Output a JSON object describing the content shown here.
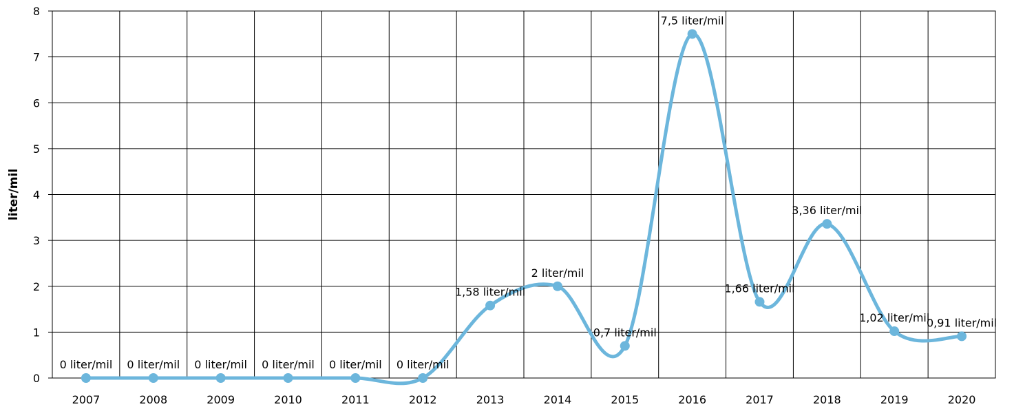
{
  "chart_data": {
    "type": "line",
    "title": "",
    "xlabel": "",
    "ylabel": "liter/mil",
    "categories": [
      "2007",
      "2008",
      "2009",
      "2010",
      "2011",
      "2012",
      "2013",
      "2014",
      "2015",
      "2016",
      "2017",
      "2018",
      "2019",
      "2020"
    ],
    "series": [
      {
        "values": [
          0,
          0,
          0,
          0,
          0,
          0,
          1.58,
          2,
          0.7,
          7.5,
          1.66,
          3.36,
          1.02,
          0.91
        ],
        "labels": [
          "0 liter/mil",
          "0 liter/mil",
          "0 liter/mil",
          "0 liter/mil",
          "0 liter/mil",
          "0 liter/mil",
          "1,58 liter/mil",
          "2 liter/mil",
          "0,7 liter/mil",
          "7,5 liter/mil",
          "1,66 liter/mil",
          "3,36 liter/mil",
          "1,02 liter/mil",
          "0,91 liter/mil"
        ],
        "color": "#6cb6dc"
      }
    ],
    "ylim": [
      0,
      8
    ],
    "yticks": [
      "0",
      "1",
      "2",
      "3",
      "4",
      "5",
      "6",
      "7",
      "8"
    ],
    "grid": true,
    "smooth": true,
    "legend": "none"
  }
}
